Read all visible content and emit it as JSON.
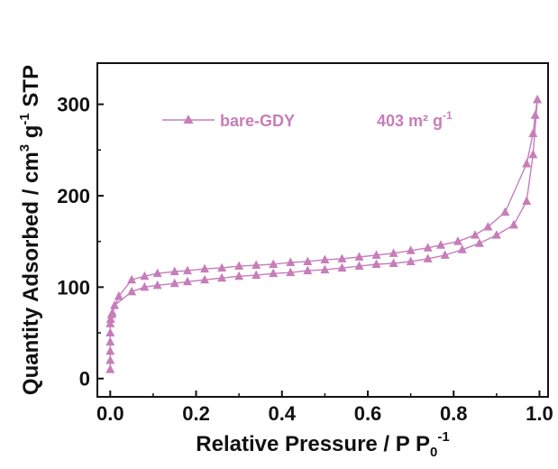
{
  "chart_data": {
    "type": "line",
    "xlabel_main": "Relative Pressure / P P",
    "xlabel_sub": "0",
    "xlabel_sup": "-1",
    "ylabel_main": "Quantity Adsorbed / cm",
    "ylabel_sup1": "3",
    "ylabel_mid": " g",
    "ylabel_sup2": "-1",
    "ylabel_end": " STP",
    "xlim": [
      -0.03,
      1.02
    ],
    "ylim": [
      -20,
      345
    ],
    "xticks": [
      0.0,
      0.2,
      0.4,
      0.6,
      0.8,
      1.0
    ],
    "xtick_labels": [
      "0.0",
      "0.2",
      "0.4",
      "0.6",
      "0.8",
      "1.0"
    ],
    "yticks": [
      0,
      100,
      200,
      300
    ],
    "ytick_labels": [
      "0",
      "100",
      "200",
      "300"
    ],
    "legend": {
      "series_label": "bare-GDY",
      "annotation": "403 m² g",
      "annotation_sup": "-1",
      "placement": "top-left"
    },
    "color": "#c77dba",
    "series": [
      {
        "name": "bare-GDY",
        "branch": "adsorption",
        "x": [
          0.0,
          0.0,
          0.0,
          0.0,
          0.0,
          0.0,
          0.001,
          0.003,
          0.01,
          0.05,
          0.08,
          0.11,
          0.15,
          0.18,
          0.22,
          0.26,
          0.3,
          0.34,
          0.38,
          0.42,
          0.46,
          0.5,
          0.54,
          0.58,
          0.62,
          0.66,
          0.7,
          0.74,
          0.78,
          0.82,
          0.86,
          0.9,
          0.94,
          0.97,
          0.985,
          0.995
        ],
        "y": [
          10,
          20,
          30,
          40,
          50,
          60,
          65,
          70,
          80,
          95,
          100,
          102,
          104,
          106,
          108,
          110,
          112,
          113,
          115,
          116,
          118,
          119,
          121,
          123,
          125,
          126,
          128,
          131,
          135,
          141,
          148,
          157,
          168,
          194,
          245,
          305
        ]
      },
      {
        "name": "bare-GDY",
        "branch": "desorption",
        "x": [
          0.995,
          0.99,
          0.985,
          0.97,
          0.92,
          0.88,
          0.85,
          0.81,
          0.77,
          0.74,
          0.7,
          0.66,
          0.62,
          0.58,
          0.54,
          0.5,
          0.46,
          0.42,
          0.38,
          0.34,
          0.3,
          0.26,
          0.22,
          0.18,
          0.15,
          0.11,
          0.08,
          0.05,
          0.02,
          0.005
        ],
        "y": [
          305,
          288,
          268,
          235,
          182,
          166,
          157,
          150,
          146,
          143,
          140,
          137,
          135,
          133,
          131,
          130,
          128,
          127,
          125,
          124,
          123,
          121,
          120,
          118,
          117,
          115,
          112,
          108,
          90,
          72
        ]
      }
    ]
  }
}
